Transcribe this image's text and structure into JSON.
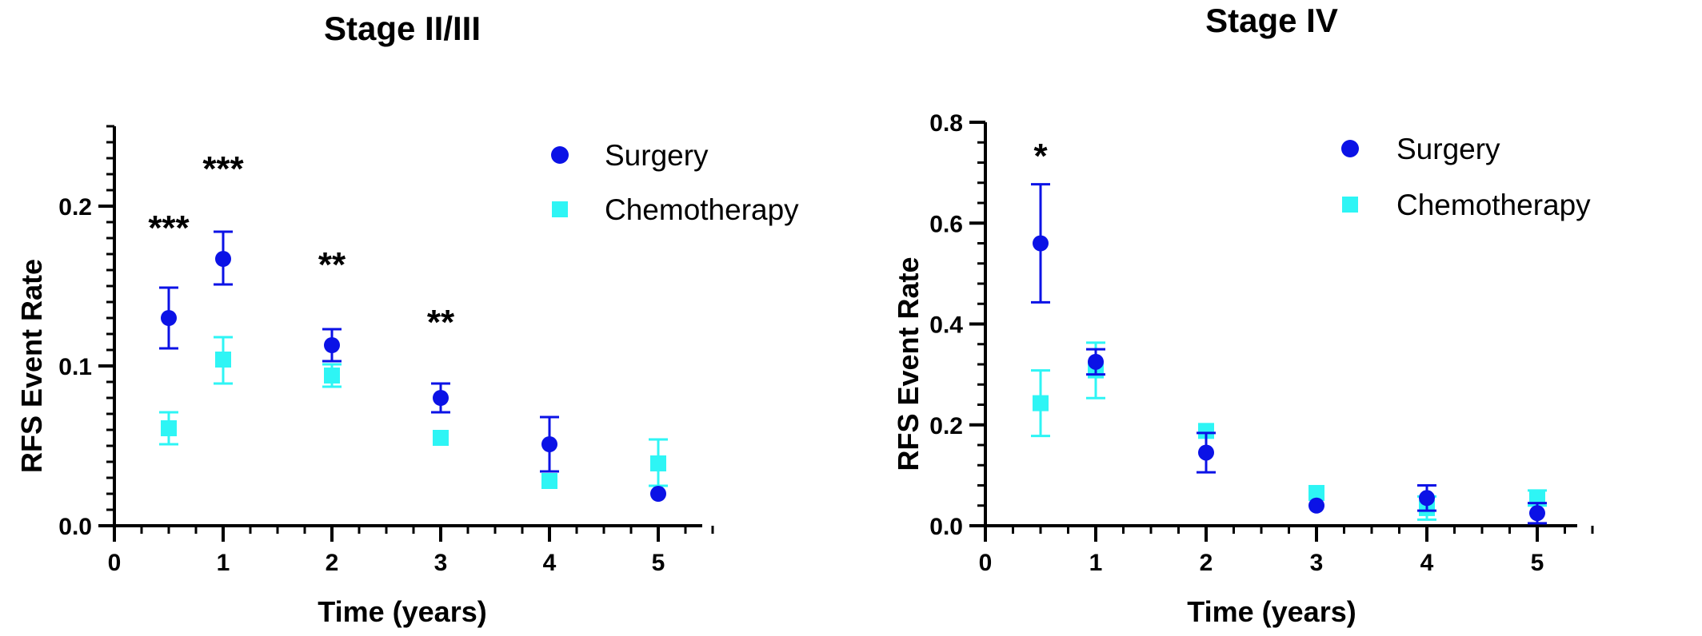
{
  "chart_data": [
    {
      "type": "scatter",
      "title": "Stage II/III",
      "xlabel": "Time (years)",
      "ylabel": "RFS Event Rate",
      "xlim": [
        0,
        5.5
      ],
      "ylim": [
        0,
        0.25
      ],
      "xticks": [
        0,
        1,
        2,
        3,
        4,
        5
      ],
      "xtick_labels": [
        "0",
        "1",
        "2",
        "3",
        "4",
        "5"
      ],
      "yticks": [
        0.0,
        0.1,
        0.2
      ],
      "ytick_labels": [
        "0.0",
        "0.1",
        "0.2"
      ],
      "grid": false,
      "legend": "top-right",
      "series": [
        {
          "name": "Surgery",
          "marker": "circle",
          "color": "#0b12e6",
          "x": [
            0.5,
            1,
            2,
            3,
            4,
            5
          ],
          "y": [
            0.13,
            0.167,
            0.113,
            0.08,
            0.051,
            0.02
          ],
          "err_low": [
            0.111,
            0.151,
            0.103,
            0.071,
            0.034,
            0.02
          ],
          "err_high": [
            0.149,
            0.184,
            0.123,
            0.089,
            0.068,
            0.02
          ]
        },
        {
          "name": "Chemotherapy",
          "marker": "square",
          "color": "#2ef5f5",
          "x": [
            0.5,
            1,
            2,
            3,
            4,
            5
          ],
          "y": [
            0.061,
            0.104,
            0.094,
            0.055,
            0.028,
            0.039
          ],
          "err_low": [
            0.051,
            0.089,
            0.087,
            0.055,
            0.028,
            0.025
          ],
          "err_high": [
            0.071,
            0.118,
            0.101,
            0.055,
            0.028,
            0.054
          ]
        }
      ],
      "annotations": [
        {
          "x": 0.5,
          "y": 0.187,
          "text": "***"
        },
        {
          "x": 1,
          "y": 0.224,
          "text": "***"
        },
        {
          "x": 2,
          "y": 0.164,
          "text": "**"
        },
        {
          "x": 3,
          "y": 0.128,
          "text": "**"
        }
      ]
    },
    {
      "type": "scatter",
      "title": "Stage IV",
      "xlabel": "Time (years)",
      "ylabel": "RFS Event Rate",
      "xlim": [
        0,
        5.5
      ],
      "ylim": [
        0,
        0.8
      ],
      "xticks": [
        0,
        1,
        2,
        3,
        4,
        5
      ],
      "xtick_labels": [
        "0",
        "1",
        "2",
        "3",
        "4",
        "5"
      ],
      "yticks": [
        0.0,
        0.2,
        0.4,
        0.6,
        0.8
      ],
      "ytick_labels": [
        "0.0",
        "0.2",
        "0.4",
        "0.6",
        "0.8"
      ],
      "grid": false,
      "legend": "top-right",
      "series": [
        {
          "name": "Surgery",
          "marker": "circle",
          "color": "#0b12e6",
          "x": [
            0.5,
            1,
            2,
            3,
            4,
            5
          ],
          "y": [
            0.56,
            0.325,
            0.145,
            0.04,
            0.055,
            0.025
          ],
          "err_low": [
            0.443,
            0.3,
            0.106,
            0.04,
            0.03,
            0.005
          ],
          "err_high": [
            0.677,
            0.35,
            0.184,
            0.04,
            0.08,
            0.045
          ]
        },
        {
          "name": "Chemotherapy",
          "marker": "square",
          "color": "#2ef5f5",
          "x": [
            0.5,
            1,
            2,
            3,
            4,
            5
          ],
          "y": [
            0.243,
            0.308,
            0.188,
            0.065,
            0.035,
            0.055
          ],
          "err_low": [
            0.178,
            0.253,
            0.188,
            0.065,
            0.012,
            0.04
          ],
          "err_high": [
            0.308,
            0.363,
            0.188,
            0.065,
            0.058,
            0.07
          ]
        }
      ],
      "annotations": [
        {
          "x": 0.5,
          "y": 0.735,
          "text": "*"
        }
      ]
    }
  ]
}
